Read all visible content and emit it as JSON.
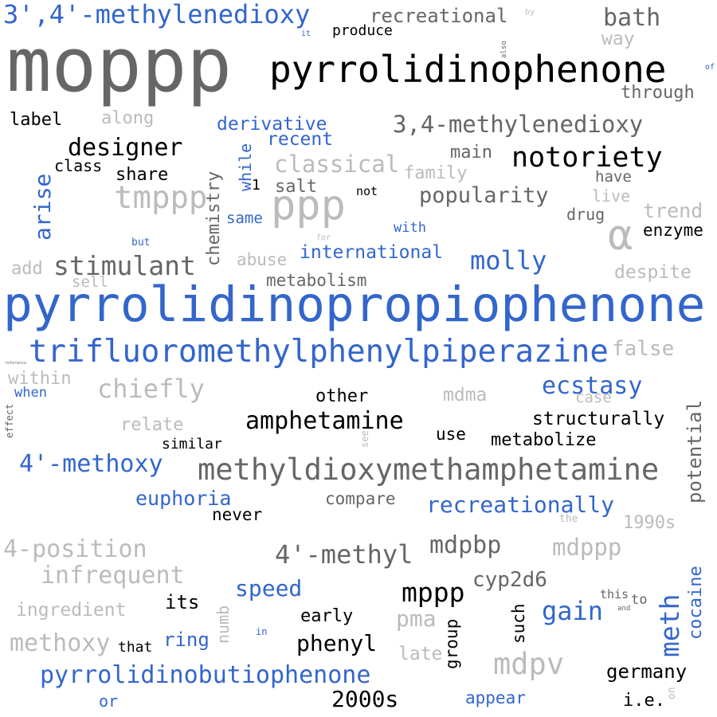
{
  "colors": {
    "blue": "#3366cc",
    "dark": "#666666",
    "light": "#bbbbbb",
    "black": "#000000"
  },
  "words": [
    {
      "text": "moppp",
      "color": "dark"
    },
    {
      "text": "pyrrolidinopropiophenone",
      "color": "blue"
    },
    {
      "text": "trifluoromethylphenylpiperazine",
      "color": "blue"
    },
    {
      "text": "pyrrolidinophenone",
      "color": "black"
    },
    {
      "text": "methyldioxymethamphetamine",
      "color": "dark"
    },
    {
      "text": "3',4'-methylenedioxy",
      "color": "blue"
    },
    {
      "text": "3,4-methylenedioxy",
      "color": "dark"
    },
    {
      "text": "pyrrolidinobutiophenone",
      "color": "blue"
    },
    {
      "text": "ppp",
      "color": "light"
    },
    {
      "text": "α",
      "color": "light"
    },
    {
      "text": "stimulant",
      "color": "dark"
    },
    {
      "text": "tmppp",
      "color": "light"
    },
    {
      "text": "designer",
      "color": "black"
    },
    {
      "text": "notoriety",
      "color": "black"
    },
    {
      "text": "amphetamine",
      "color": "black"
    },
    {
      "text": "4'-methoxy",
      "color": "blue"
    },
    {
      "text": "chiefly",
      "color": "light"
    },
    {
      "text": "ecstasy",
      "color": "blue"
    },
    {
      "text": "recreationally",
      "color": "blue"
    },
    {
      "text": "molly",
      "color": "blue"
    },
    {
      "text": "classical",
      "color": "light"
    },
    {
      "text": "popularity",
      "color": "dark"
    },
    {
      "text": "international",
      "color": "blue"
    },
    {
      "text": "derivative",
      "color": "blue"
    },
    {
      "text": "recent",
      "color": "blue"
    },
    {
      "text": "bath",
      "color": "dark"
    },
    {
      "text": "recreational",
      "color": "dark"
    },
    {
      "text": "way",
      "color": "light"
    },
    {
      "text": "through",
      "color": "dark"
    },
    {
      "text": "label",
      "color": "black"
    },
    {
      "text": "along",
      "color": "light"
    },
    {
      "text": "class",
      "color": "black"
    },
    {
      "text": "share",
      "color": "black"
    },
    {
      "text": "arise",
      "color": "blue"
    },
    {
      "text": "chemistry",
      "color": "dark"
    },
    {
      "text": "while",
      "color": "blue"
    },
    {
      "text": "1",
      "color": "black"
    },
    {
      "text": "salt",
      "color": "dark"
    },
    {
      "text": "not",
      "color": "black"
    },
    {
      "text": "main",
      "color": "dark"
    },
    {
      "text": "family",
      "color": "light"
    },
    {
      "text": "have",
      "color": "dark"
    },
    {
      "text": "live",
      "color": "light"
    },
    {
      "text": "drug",
      "color": "dark"
    },
    {
      "text": "trend",
      "color": "light"
    },
    {
      "text": "enzyme",
      "color": "black"
    },
    {
      "text": "same",
      "color": "blue"
    },
    {
      "text": "with",
      "color": "blue"
    },
    {
      "text": "but",
      "color": "blue"
    },
    {
      "text": "for",
      "color": "light"
    },
    {
      "text": "abuse",
      "color": "light"
    },
    {
      "text": "add",
      "color": "light"
    },
    {
      "text": "sell",
      "color": "light"
    },
    {
      "text": "metabolism",
      "color": "dark"
    },
    {
      "text": "despite",
      "color": "light"
    },
    {
      "text": "false",
      "color": "light"
    },
    {
      "text": "within",
      "color": "light"
    },
    {
      "text": "when",
      "color": "blue"
    },
    {
      "text": "effect",
      "color": "dark"
    },
    {
      "text": "other",
      "color": "black"
    },
    {
      "text": "mdma",
      "color": "light"
    },
    {
      "text": "case",
      "color": "light"
    },
    {
      "text": "structurally",
      "color": "black"
    },
    {
      "text": "potential",
      "color": "dark"
    },
    {
      "text": "relate",
      "color": "light"
    },
    {
      "text": "similar",
      "color": "black"
    },
    {
      "text": "see",
      "color": "light"
    },
    {
      "text": "use",
      "color": "black"
    },
    {
      "text": "metabolize",
      "color": "black"
    },
    {
      "text": "euphoria",
      "color": "blue"
    },
    {
      "text": "compare",
      "color": "dark"
    },
    {
      "text": "never",
      "color": "black"
    },
    {
      "text": "the",
      "color": "light"
    },
    {
      "text": "1990s",
      "color": "light"
    },
    {
      "text": "4-position",
      "color": "light"
    },
    {
      "text": "4'-methyl",
      "color": "dark"
    },
    {
      "text": "mdpbp",
      "color": "dark"
    },
    {
      "text": "mdppp",
      "color": "light"
    },
    {
      "text": "infrequent",
      "color": "light"
    },
    {
      "text": "speed",
      "color": "blue"
    },
    {
      "text": "mppp",
      "color": "black"
    },
    {
      "text": "cyp2d6",
      "color": "dark"
    },
    {
      "text": "meth",
      "color": "blue"
    },
    {
      "text": "cocaine",
      "color": "blue"
    },
    {
      "text": "ingredient",
      "color": "light"
    },
    {
      "text": "its",
      "color": "black"
    },
    {
      "text": "numb",
      "color": "light"
    },
    {
      "text": "early",
      "color": "black"
    },
    {
      "text": "pma",
      "color": "light"
    },
    {
      "text": "gain",
      "color": "blue"
    },
    {
      "text": "this",
      "color": "dark"
    },
    {
      "text": "to",
      "color": "dark"
    },
    {
      "text": "and",
      "color": "dark"
    },
    {
      "text": "in",
      "color": "blue"
    },
    {
      "text": "methoxy",
      "color": "light"
    },
    {
      "text": "that",
      "color": "black"
    },
    {
      "text": "ring",
      "color": "blue"
    },
    {
      "text": "phenyl",
      "color": "black"
    },
    {
      "text": "group",
      "color": "black"
    },
    {
      "text": "such",
      "color": "black"
    },
    {
      "text": "late",
      "color": "light"
    },
    {
      "text": "mdpv",
      "color": "light"
    },
    {
      "text": "germany",
      "color": "black"
    },
    {
      "text": "on",
      "color": "light"
    },
    {
      "text": "2000s",
      "color": "black"
    },
    {
      "text": "appear",
      "color": "blue"
    },
    {
      "text": "i.e.",
      "color": "black"
    },
    {
      "text": "or",
      "color": "blue"
    },
    {
      "text": "produce",
      "color": "black"
    },
    {
      "text": "it",
      "color": "blue"
    },
    {
      "text": "by",
      "color": "light"
    },
    {
      "text": "also",
      "color": "dark"
    },
    {
      "text": "of",
      "color": "blue"
    },
    {
      "text": "reference",
      "color": "dark"
    }
  ]
}
